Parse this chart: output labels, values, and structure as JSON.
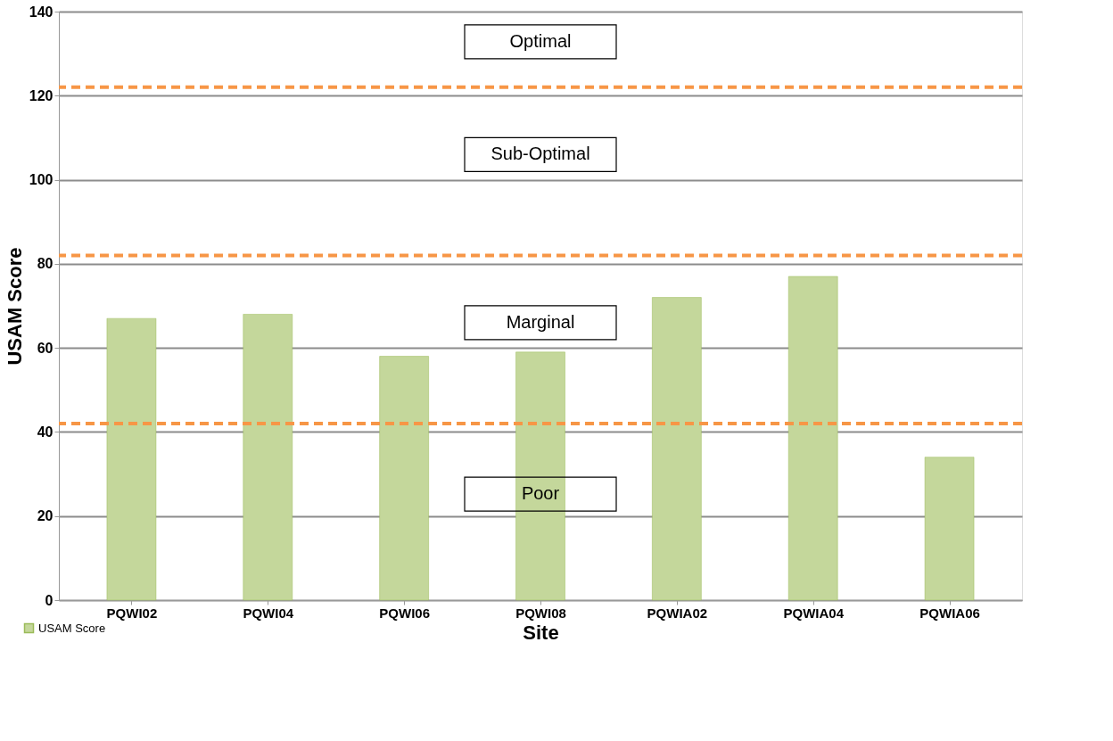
{
  "chart_data": {
    "type": "bar",
    "xlabel": "Site",
    "ylabel": "USAM Score",
    "categories": [
      "PQWI02",
      "PQWI04",
      "PQWI06",
      "PQWI08",
      "PQWIA02",
      "PQWIA04",
      "PQWIA06"
    ],
    "series": [
      {
        "name": "USAM Score",
        "color": "#c4d79b",
        "values": [
          67,
          68,
          58,
          59,
          72,
          77,
          34
        ]
      }
    ],
    "ylim": [
      0,
      140
    ],
    "yticks": [
      0,
      20,
      40,
      60,
      80,
      100,
      120,
      140
    ],
    "grid": "y",
    "legend": "bottom left",
    "ref_lines": [
      {
        "axis": "y",
        "value": 122,
        "color": "#f79646",
        "line_style": "dashed"
      },
      {
        "axis": "y",
        "value": 82,
        "color": "#f79646",
        "line_style": "dashed"
      },
      {
        "axis": "y",
        "value": 42,
        "color": "#f79646",
        "line_style": "dashed"
      }
    ],
    "annotations": [
      "Optimal",
      "Sub-Optimal",
      "Marginal",
      "Poor"
    ]
  }
}
